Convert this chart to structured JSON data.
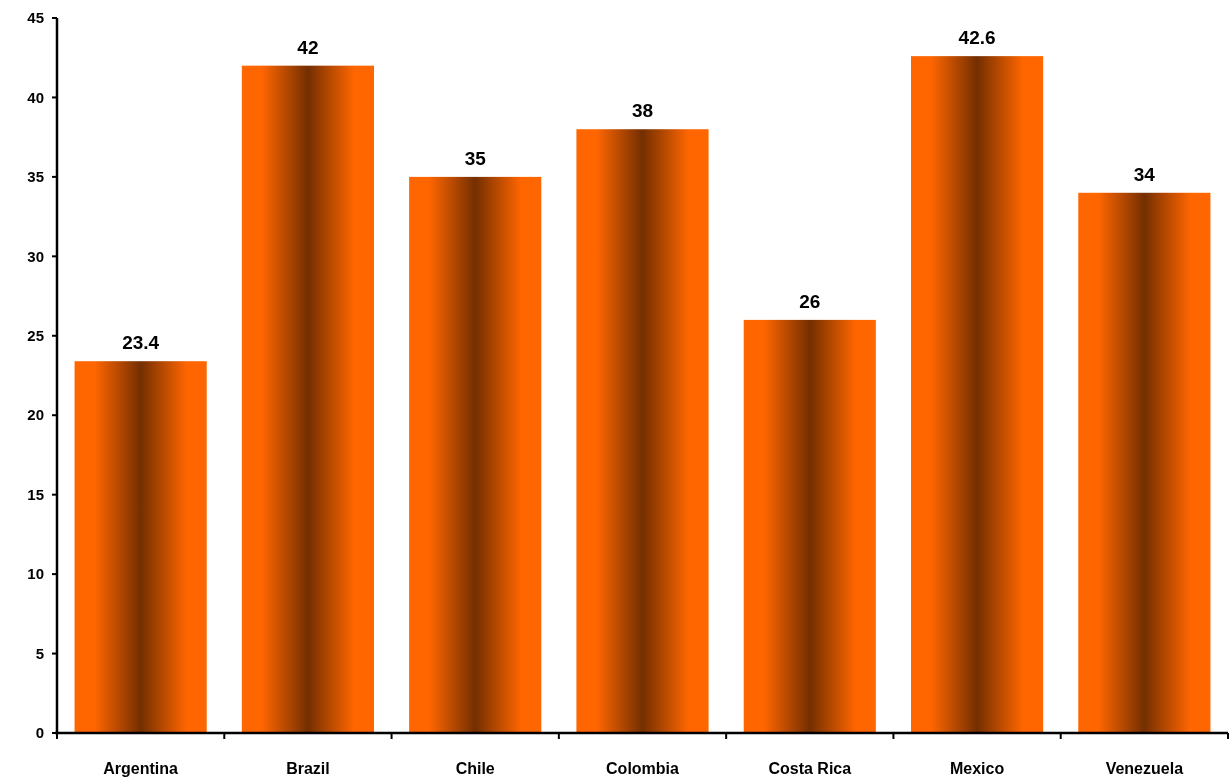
{
  "chart_data": {
    "type": "bar",
    "categories": [
      "Argentina",
      "Brazil",
      "Chile",
      "Colombia",
      "Costa Rica",
      "Mexico",
      "Venezuela"
    ],
    "values": [
      23.4,
      42,
      35,
      38,
      26,
      42.6,
      34
    ],
    "color": "#ff6600",
    "ylim": [
      0,
      45
    ],
    "yticks": [
      0,
      5,
      10,
      15,
      20,
      25,
      30,
      35,
      40,
      45
    ],
    "data_labels": true
  }
}
